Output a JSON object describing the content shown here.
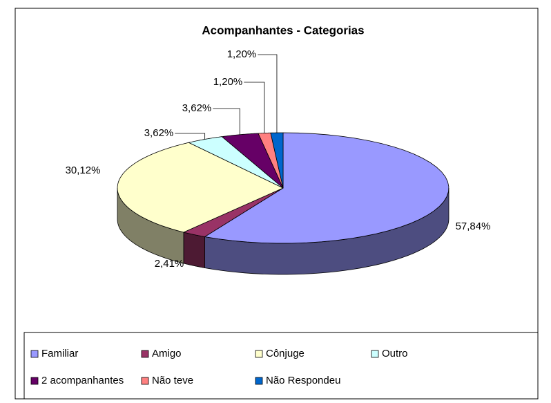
{
  "chart_data": {
    "type": "pie",
    "title": "Acompanhantes - Categorias",
    "categories": [
      "Familiar",
      "Amigo",
      "Cônjuge",
      "Outro",
      "2 acompanhantes",
      "Não teve",
      "Não Respondeu"
    ],
    "values": [
      57.84,
      2.41,
      30.12,
      3.62,
      3.62,
      1.2,
      1.2
    ],
    "value_labels": [
      "57,84%",
      "2,41%",
      "30,12%",
      "3,62%",
      "3,62%",
      "1,20%",
      "1,20%"
    ],
    "colors": [
      "#9999ff",
      "#993366",
      "#ffffcc",
      "#ccffff",
      "#660066",
      "#ff8080",
      "#0066cc"
    ],
    "legend": "bottom"
  }
}
